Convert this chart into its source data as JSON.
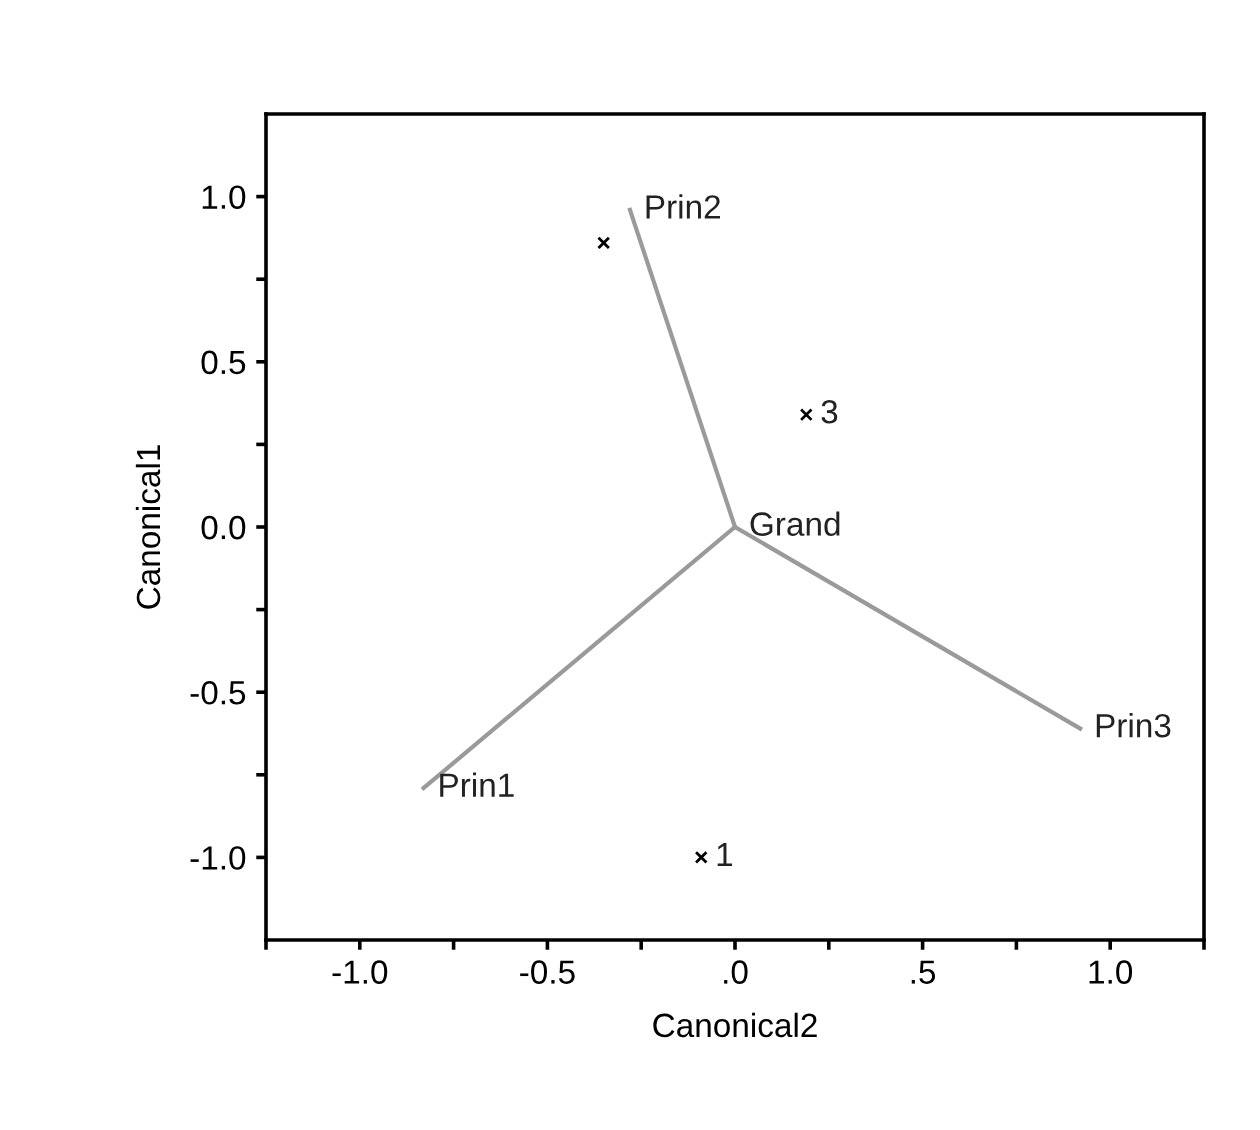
{
  "chart_data": {
    "type": "scatter",
    "xlabel": "Canonical2",
    "ylabel": "Canonical1",
    "grid": false,
    "legend": false,
    "xlim": [
      -1.25,
      1.25
    ],
    "ylim": [
      -1.25,
      1.25
    ],
    "xticks": [
      {
        "value": -1.25,
        "label": null
      },
      {
        "value": -1.0,
        "label": "-1.0"
      },
      {
        "value": -0.75,
        "label": null
      },
      {
        "value": -0.5,
        "label": "-0.5"
      },
      {
        "value": -0.25,
        "label": null
      },
      {
        "value": 0,
        "label": ".0"
      },
      {
        "value": 0.25,
        "label": null
      },
      {
        "value": 0.5,
        "label": ".5"
      },
      {
        "value": 0.75,
        "label": null
      },
      {
        "value": 1.0,
        "label": "1.0"
      },
      {
        "value": 1.25,
        "label": null
      }
    ],
    "yticks": [
      {
        "value": -1.0,
        "label": "-1.0"
      },
      {
        "value": -0.75,
        "label": null
      },
      {
        "value": -0.5,
        "label": "-0.5"
      },
      {
        "value": -0.25,
        "label": null
      },
      {
        "value": 0,
        "label": "0.0"
      },
      {
        "value": 0.25,
        "label": null
      },
      {
        "value": 0.5,
        "label": "0.5"
      },
      {
        "value": 0.75,
        "label": null
      },
      {
        "value": 1.0,
        "label": "1.0"
      }
    ],
    "series": [
      {
        "marker": "cross",
        "color": "#000000",
        "x": [
          -0.09,
          -0.35,
          0.19
        ],
        "values": [
          -1.0,
          0.86,
          0.34
        ]
      },
      {
        "type": "line",
        "marker": "none",
        "color": "#9a9a9a",
        "x": [
          0,
          -0.83
        ],
        "values": [
          0,
          -0.79
        ]
      },
      {
        "type": "line",
        "marker": "none",
        "color": "#9a9a9a",
        "x": [
          0,
          -0.28
        ],
        "values": [
          0,
          0.96
        ]
      },
      {
        "type": "line",
        "marker": "none",
        "color": "#9a9a9a",
        "x": [
          0,
          0.92
        ],
        "values": [
          0,
          -0.61
        ]
      }
    ],
    "annotations": [
      {
        "text": "1",
        "x": -0.09,
        "y": -1.0
      },
      {
        "text": "3",
        "x": 0.19,
        "y": 0.34
      },
      {
        "text": "Grand",
        "x": 0,
        "y": 0
      },
      {
        "text": "Prin1",
        "x": -0.83,
        "y": -0.79
      },
      {
        "text": "Prin2",
        "x": -0.28,
        "y": 0.96
      },
      {
        "text": "Prin3",
        "x": 0.92,
        "y": -0.61
      }
    ]
  }
}
